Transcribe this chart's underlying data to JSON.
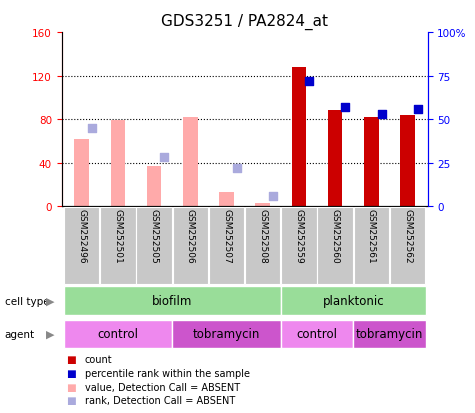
{
  "title": "GDS3251 / PA2824_at",
  "samples": [
    "GSM252496",
    "GSM252501",
    "GSM252505",
    "GSM252506",
    "GSM252507",
    "GSM252508",
    "GSM252559",
    "GSM252560",
    "GSM252561",
    "GSM252562"
  ],
  "count_values": [
    0,
    0,
    0,
    0,
    0,
    0,
    128,
    88,
    82,
    84
  ],
  "percentile_values": [
    0,
    0,
    0,
    0,
    0,
    0,
    72,
    57,
    53,
    56
  ],
  "value_absent": [
    62,
    79,
    37,
    82,
    13,
    3,
    0,
    0,
    0,
    0
  ],
  "rank_absent": [
    45,
    0,
    28,
    0,
    22,
    6,
    0,
    0,
    0,
    0
  ],
  "is_absent": [
    true,
    true,
    true,
    true,
    true,
    true,
    false,
    false,
    false,
    false
  ],
  "left_ylim": [
    0,
    160
  ],
  "right_ylim": [
    0,
    100
  ],
  "left_yticks": [
    0,
    40,
    80,
    120,
    160
  ],
  "right_yticks": [
    0,
    25,
    50,
    75,
    100
  ],
  "right_yticklabels": [
    "0",
    "25",
    "50",
    "75",
    "100%"
  ],
  "color_count": "#cc0000",
  "color_percentile": "#0000cc",
  "color_value_absent": "#ffaaaa",
  "color_rank_absent": "#aaaadd",
  "color_biofilm": "#99dd99",
  "color_planktonic": "#99dd99",
  "color_control": "#ee88ee",
  "color_tobramycin": "#cc55cc",
  "color_gray": "#c8c8c8",
  "title_fontsize": 11,
  "axis_fontsize": 8,
  "tick_fontsize": 7.5,
  "sample_fontsize": 6.5,
  "row_fontsize": 8.5,
  "legend_fontsize": 7,
  "agent_spans": [
    [
      0,
      2,
      "control"
    ],
    [
      3,
      5,
      "tobramycin"
    ],
    [
      6,
      7,
      "control"
    ],
    [
      8,
      9,
      "tobramycin"
    ]
  ],
  "cell_type_spans": [
    [
      0,
      5,
      "biofilm"
    ],
    [
      6,
      9,
      "planktonic"
    ]
  ]
}
